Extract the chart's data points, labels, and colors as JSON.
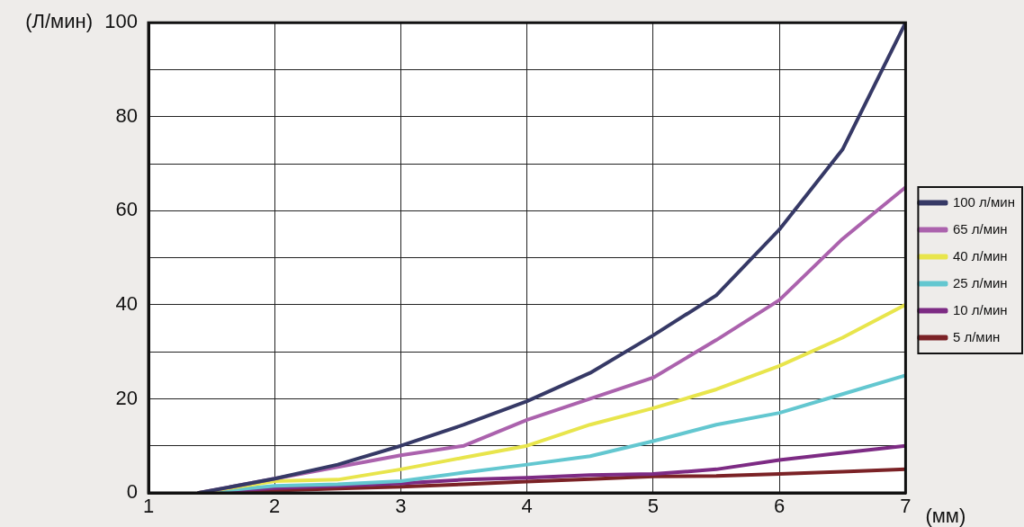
{
  "chart_data": {
    "type": "line",
    "xlabel": "(мм)",
    "ylabel": "(Л/мин)",
    "x": [
      1.4,
      2,
      2.5,
      3,
      3.5,
      4,
      4.5,
      5,
      5.5,
      6,
      6.5,
      7
    ],
    "series": [
      {
        "name": "100 л/мин",
        "color": "#363966",
        "values": [
          0,
          3,
          6,
          10,
          14.5,
          19.5,
          25.5,
          33.5,
          42,
          56,
          73,
          100
        ]
      },
      {
        "name": "65 л/мин",
        "color": "#ab62ad",
        "values": [
          0,
          3,
          5.5,
          8,
          10,
          15.5,
          20,
          24.5,
          32.5,
          41,
          54,
          65
        ]
      },
      {
        "name": "40 л/мин",
        "color": "#e8e54c",
        "values": [
          0,
          2.5,
          2.8,
          5,
          7.5,
          10,
          14.5,
          18,
          22,
          27,
          33,
          40
        ]
      },
      {
        "name": "25 л/мин",
        "color": "#63c7d0",
        "values": [
          0,
          1.5,
          1.8,
          2.5,
          4.3,
          6,
          7.8,
          11,
          14.5,
          17,
          21,
          25
        ]
      },
      {
        "name": "10 л/мин",
        "color": "#7d2b84",
        "values": [
          0,
          1,
          1.5,
          2,
          2.8,
          3.2,
          3.8,
          4,
          5,
          7,
          8.5,
          10
        ]
      },
      {
        "name": "5 л/мин",
        "color": "#7b2226",
        "values": [
          0,
          0.5,
          0.9,
          1.3,
          1.8,
          2.4,
          2.9,
          3.5,
          3.6,
          4,
          4.5,
          5
        ]
      }
    ],
    "xlim": [
      1,
      7
    ],
    "xticks": [
      1,
      2,
      3,
      4,
      5,
      6,
      7
    ],
    "ylim": [
      0,
      100
    ],
    "yticks": [
      0,
      {
        "value": 10,
        "label": null
      },
      20,
      {
        "value": 30,
        "label": null
      },
      40,
      {
        "value": 50,
        "label": null
      },
      60,
      {
        "value": 70,
        "label": null
      },
      80,
      {
        "value": 90,
        "label": null
      },
      100
    ],
    "grid": true,
    "legend": "right",
    "marker": "none",
    "line_style": "solid"
  }
}
